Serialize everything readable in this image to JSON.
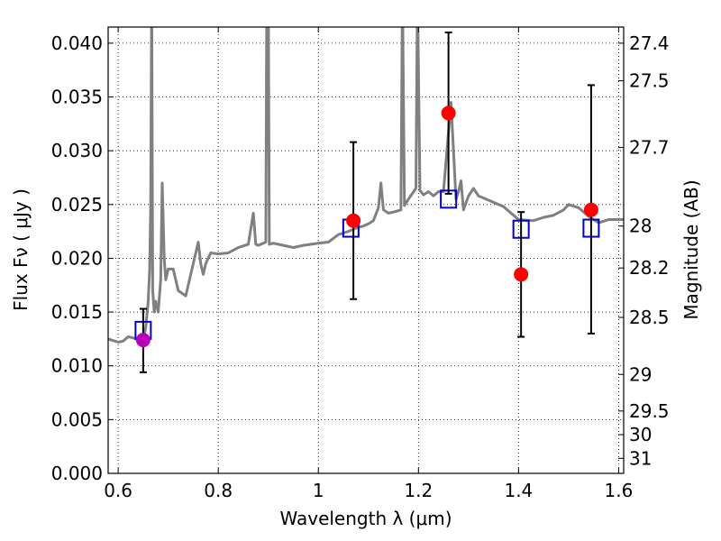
{
  "chart_data": {
    "type": "scatter",
    "xlabel": "Wavelength  λ (μm)",
    "ylabel": "Flux  Fν  ( μJy )",
    "y2label": "Magnitude (AB)",
    "xlim": [
      0.58,
      1.61
    ],
    "ylim": [
      0.0,
      0.0415
    ],
    "grid": true,
    "x_ticks": [
      0.6,
      0.8,
      1.0,
      1.2,
      1.4,
      1.6
    ],
    "x_tick_labels": [
      "0.6",
      "0.8",
      "1",
      "1.2",
      "1.4",
      "1.6"
    ],
    "y_ticks": [
      0.0,
      0.005,
      0.01,
      0.015,
      0.02,
      0.025,
      0.03,
      0.035,
      0.04
    ],
    "y_tick_labels": [
      "0.000",
      "0.005",
      "0.010",
      "0.015",
      "0.020",
      "0.025",
      "0.030",
      "0.035",
      "0.040"
    ],
    "right_axis_ticks": [
      {
        "label": "27.4",
        "flux": 0.04
      },
      {
        "label": "27.5",
        "flux": 0.0365
      },
      {
        "label": "27.7",
        "flux": 0.0303
      },
      {
        "label": "28",
        "flux": 0.023
      },
      {
        "label": "28.2",
        "flux": 0.0191
      },
      {
        "label": "28.5",
        "flux": 0.0145
      },
      {
        "label": "29",
        "flux": 0.0092
      },
      {
        "label": "29.5",
        "flux": 0.0058
      },
      {
        "label": "30",
        "flux": 0.0036
      },
      {
        "label": "31",
        "flux": 0.0014
      }
    ],
    "series": [
      {
        "type": "line",
        "color": "#808080",
        "x": [
          0.58,
          0.6,
          0.61,
          0.62,
          0.63,
          0.64,
          0.645,
          0.65,
          0.655,
          0.66,
          0.663,
          0.665,
          0.667,
          0.669,
          0.672,
          0.675,
          0.68,
          0.685,
          0.688,
          0.692,
          0.695,
          0.7,
          0.71,
          0.72,
          0.735,
          0.75,
          0.76,
          0.765,
          0.77,
          0.775,
          0.785,
          0.8,
          0.82,
          0.84,
          0.86,
          0.87,
          0.875,
          0.88,
          0.895,
          0.897,
          0.9,
          0.902,
          0.91,
          0.93,
          0.95,
          0.97,
          1.0,
          1.02,
          1.04,
          1.06,
          1.075,
          1.09,
          1.1,
          1.11,
          1.12,
          1.125,
          1.13,
          1.14,
          1.15,
          1.165,
          1.168,
          1.172,
          1.18,
          1.195,
          1.198,
          1.203,
          1.21,
          1.22,
          1.23,
          1.24,
          1.25,
          1.265,
          1.275,
          1.28,
          1.285,
          1.29,
          1.3,
          1.31,
          1.32,
          1.35,
          1.37,
          1.4,
          1.43,
          1.45,
          1.47,
          1.49,
          1.5,
          1.52,
          1.54,
          1.56,
          1.58,
          1.6,
          1.61
        ],
        "y": [
          0.0125,
          0.0122,
          0.0123,
          0.0127,
          0.0126,
          0.0124,
          0.0122,
          0.0125,
          0.0135,
          0.016,
          0.019,
          0.025,
          0.045,
          0.017,
          0.015,
          0.016,
          0.015,
          0.018,
          0.027,
          0.02,
          0.018,
          0.019,
          0.019,
          0.017,
          0.0165,
          0.0195,
          0.0215,
          0.0195,
          0.0185,
          0.0195,
          0.0205,
          0.0204,
          0.0205,
          0.021,
          0.0213,
          0.0242,
          0.0213,
          0.0212,
          0.0215,
          0.045,
          0.045,
          0.0213,
          0.0214,
          0.0212,
          0.021,
          0.0212,
          0.0214,
          0.0215,
          0.0222,
          0.0225,
          0.0228,
          0.023,
          0.0232,
          0.0235,
          0.0247,
          0.027,
          0.0245,
          0.0242,
          0.0243,
          0.0245,
          0.045,
          0.0249,
          0.0255,
          0.0265,
          0.045,
          0.0263,
          0.0259,
          0.0262,
          0.0258,
          0.0262,
          0.0262,
          0.0345,
          0.0255,
          0.0262,
          0.0272,
          0.0245,
          0.0258,
          0.0265,
          0.0258,
          0.0252,
          0.0248,
          0.0236,
          0.0235,
          0.0238,
          0.024,
          0.0245,
          0.025,
          0.0247,
          0.0239,
          0.0233,
          0.0236,
          0.0236,
          0.0236
        ]
      },
      {
        "type": "open-squares",
        "color": "#0000cc",
        "x": [
          0.65,
          1.065,
          1.26,
          1.405,
          1.545
        ],
        "y": [
          0.0133,
          0.0228,
          0.0255,
          0.0227,
          0.0228
        ]
      },
      {
        "type": "points-with-errorbars",
        "color": "#ff0000",
        "x": [
          1.07,
          1.26,
          1.405,
          1.545
        ],
        "y": [
          0.0235,
          0.0335,
          0.0185,
          0.0245
        ],
        "yerr_low": [
          0.0162,
          0.026,
          0.0127,
          0.013
        ],
        "yerr_high": [
          0.0308,
          0.041,
          0.0243,
          0.0361
        ]
      },
      {
        "type": "points-with-errorbars",
        "color": "#bb00bb",
        "x": [
          0.65
        ],
        "y": [
          0.0124
        ],
        "yerr_low": [
          0.0094
        ],
        "yerr_high": [
          0.0153
        ]
      }
    ]
  }
}
